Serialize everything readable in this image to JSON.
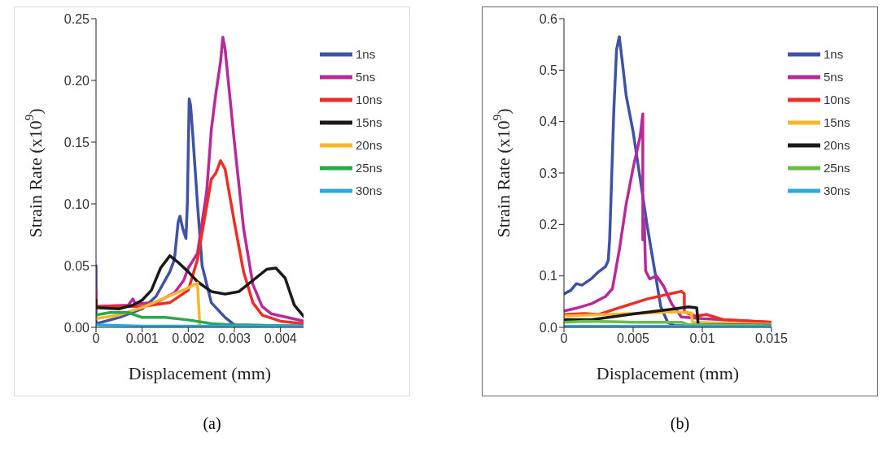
{
  "chart_data": [
    {
      "type": "line",
      "xlabel": "Displacement (mm)",
      "ylabel": "Strain Rate (x10$^{9}$)",
      "xlim": [
        0,
        0.0045
      ],
      "xticks": [
        0,
        0.001,
        0.002,
        0.003,
        0.004
      ],
      "ylim": [
        0,
        0.25
      ],
      "yticks": [
        {
          "value": 0,
          "label": "0.00"
        },
        {
          "value": 0.05,
          "label": "0.05"
        },
        {
          "value": 0.1,
          "label": "0.10"
        },
        {
          "value": 0.15,
          "label": "0.15"
        },
        {
          "value": 0.2,
          "label": "0.20"
        },
        {
          "value": 0.25,
          "label": "0.25"
        }
      ],
      "grid": false,
      "legend": "top right",
      "annotations": [
        "(a)"
      ],
      "series": [
        {
          "name": "1ns",
          "color": "#3f53a4",
          "x": [
            0,
            0,
            0.0005,
            0.001,
            0.0013,
            0.0016,
            0.0017,
            0.00178,
            0.00182,
            0.00188,
            0.00195,
            0.00198,
            0.00202,
            0.00205,
            0.0021,
            0.0022,
            0.0023,
            0.0025,
            0.0028,
            0.003,
            0.0045
          ],
          "values": [
            0.05,
            0.003,
            0.008,
            0.015,
            0.025,
            0.045,
            0.055,
            0.085,
            0.09,
            0.08,
            0.072,
            0.1,
            0.185,
            0.18,
            0.155,
            0.1,
            0.05,
            0.02,
            0.008,
            0.002,
            0.001
          ]
        },
        {
          "name": "5ns",
          "color": "#b8299a",
          "x": [
            0,
            0,
            0.0007,
            0.0008,
            0.00085,
            0.0013,
            0.0017,
            0.0019,
            0.002,
            0.0022,
            0.0024,
            0.0025,
            0.0026,
            0.0027,
            0.00275,
            0.0028,
            0.003,
            0.0032,
            0.0034,
            0.0036,
            0.0038,
            0.0045
          ],
          "values": [
            0.03,
            0.017,
            0.018,
            0.023,
            0.019,
            0.02,
            0.028,
            0.038,
            0.048,
            0.06,
            0.11,
            0.16,
            0.19,
            0.215,
            0.235,
            0.225,
            0.15,
            0.08,
            0.035,
            0.017,
            0.011,
            0.005
          ]
        },
        {
          "name": "10ns",
          "color": "#ee2e24",
          "x": [
            0,
            0,
            0.001,
            0.0016,
            0.002,
            0.0022,
            0.0025,
            0.0026,
            0.0027,
            0.0028,
            0.003,
            0.0032,
            0.0034,
            0.0036,
            0.004,
            0.0045
          ],
          "values": [
            0.025,
            0.017,
            0.017,
            0.02,
            0.03,
            0.055,
            0.12,
            0.125,
            0.135,
            0.128,
            0.085,
            0.045,
            0.02,
            0.01,
            0.005,
            0.003
          ]
        },
        {
          "name": "15ns",
          "color": "#1a1a1a",
          "x": [
            0,
            0,
            0.0005,
            0.0008,
            0.001,
            0.0012,
            0.0014,
            0.0016,
            0.0018,
            0.002,
            0.0022,
            0.0025,
            0.0028,
            0.0031,
            0.0034,
            0.0037,
            0.0039,
            0.0041,
            0.0043,
            0.0045
          ],
          "values": [
            0.022,
            0.016,
            0.015,
            0.018,
            0.022,
            0.03,
            0.048,
            0.058,
            0.052,
            0.045,
            0.037,
            0.029,
            0.027,
            0.029,
            0.038,
            0.047,
            0.048,
            0.04,
            0.018,
            0.009
          ]
        },
        {
          "name": "20ns",
          "color": "#f8b72a",
          "x": [
            0,
            0.0005,
            0.001,
            0.0015,
            0.002,
            0.0022,
            0.00225
          ],
          "values": [
            0.007,
            0.01,
            0.016,
            0.024,
            0.032,
            0.036,
            0.001
          ]
        },
        {
          "name": "25ns",
          "color": "#2aa84a",
          "x": [
            0,
            0.0003,
            0.0007,
            0.001,
            0.0015,
            0.002,
            0.0025,
            0.003,
            0.0045
          ],
          "values": [
            0.01,
            0.012,
            0.012,
            0.008,
            0.008,
            0.006,
            0.003,
            0.002,
            0.001
          ]
        },
        {
          "name": "30ns",
          "color": "#27aae1",
          "x": [
            0,
            0.001,
            0.0045
          ],
          "values": [
            0.002,
            0.001,
            0.001
          ]
        }
      ]
    },
    {
      "type": "line",
      "xlabel": "Displacement (mm)",
      "ylabel": "Strain Rate (x10$^{9}$)",
      "xlim": [
        0,
        0.015
      ],
      "xticks": [
        0,
        0.005,
        0.01,
        0.015
      ],
      "ylim": [
        0,
        0.6
      ],
      "yticks": [
        {
          "value": 0,
          "label": "0.0"
        },
        {
          "value": 0.1,
          "label": "0.1"
        },
        {
          "value": 0.2,
          "label": "0.2"
        },
        {
          "value": 0.3,
          "label": "0.3"
        },
        {
          "value": 0.4,
          "label": "0.4"
        },
        {
          "value": 0.5,
          "label": "0.5"
        },
        {
          "value": 0.6,
          "label": "0.6"
        }
      ],
      "grid": false,
      "legend": "top right",
      "annotations": [
        "(b)"
      ],
      "series": [
        {
          "name": "1ns",
          "color": "#3f53a4",
          "x": [
            0,
            0.0005,
            0.0009,
            0.0013,
            0.002,
            0.0025,
            0.003,
            0.0032,
            0.0033,
            0.0034,
            0.0036,
            0.0038,
            0.004,
            0.0042,
            0.0045,
            0.005,
            0.0055,
            0.006,
            0.0065,
            0.007,
            0.0075,
            0.008,
            0.015
          ],
          "values": [
            0.065,
            0.072,
            0.085,
            0.082,
            0.095,
            0.108,
            0.118,
            0.13,
            0.17,
            0.25,
            0.42,
            0.54,
            0.565,
            0.52,
            0.45,
            0.38,
            0.29,
            0.2,
            0.12,
            0.04,
            0.01,
            0.003,
            0.003
          ]
        },
        {
          "name": "5ns",
          "color": "#b8299a",
          "x": [
            0,
            0.001,
            0.002,
            0.003,
            0.0035,
            0.004,
            0.0045,
            0.005,
            0.0055,
            0.0057,
            0.0057,
            0.0058,
            0.0059,
            0.0062,
            0.0067,
            0.0072,
            0.0078,
            0.0085,
            0.01,
            0.015
          ],
          "values": [
            0.032,
            0.038,
            0.046,
            0.06,
            0.075,
            0.15,
            0.24,
            0.31,
            0.37,
            0.415,
            0.17,
            0.21,
            0.11,
            0.094,
            0.1,
            0.08,
            0.045,
            0.02,
            0.017,
            0.01
          ]
        },
        {
          "name": "10ns",
          "color": "#ee2e24",
          "x": [
            0,
            0.0015,
            0.0025,
            0.004,
            0.006,
            0.008,
            0.0085,
            0.0087,
            0.0087,
            0.0095,
            0.0103,
            0.0115,
            0.015
          ],
          "values": [
            0.025,
            0.027,
            0.025,
            0.038,
            0.055,
            0.067,
            0.07,
            0.065,
            0.03,
            0.022,
            0.025,
            0.015,
            0.01
          ]
        },
        {
          "name": "15ns",
          "color": "#f8b72a",
          "x": [
            0,
            0.002,
            0.005,
            0.008,
            0.0092,
            0.0093,
            0.015
          ],
          "values": [
            0.022,
            0.024,
            0.027,
            0.03,
            0.028,
            0.01,
            0.006
          ]
        },
        {
          "name": "20ns",
          "color": "#1a1a1a",
          "x": [
            0,
            0.002,
            0.005,
            0.008,
            0.009,
            0.0096,
            0.0097,
            0.015
          ],
          "values": [
            0.015,
            0.015,
            0.026,
            0.036,
            0.04,
            0.038,
            0.005,
            0.004
          ]
        },
        {
          "name": "25ns",
          "color": "#6cbd45",
          "x": [
            0,
            0.0015,
            0.005,
            0.0085,
            0.009,
            0.015
          ],
          "values": [
            0.01,
            0.012,
            0.01,
            0.01,
            0.005,
            0.003
          ]
        },
        {
          "name": "30ns",
          "color": "#27aae1",
          "x": [
            0,
            0.015
          ],
          "values": [
            0.002,
            0.002
          ]
        }
      ]
    }
  ]
}
